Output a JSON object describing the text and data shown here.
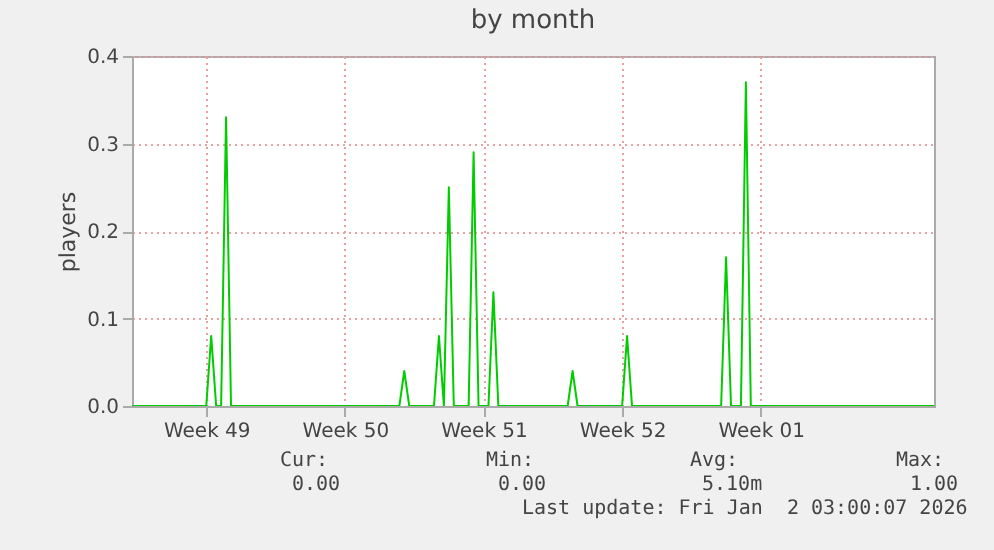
{
  "chart_data": {
    "type": "line",
    "title": "by month",
    "ylabel": "players",
    "categories": [
      null,
      null,
      null,
      null,
      null,
      null,
      null,
      null,
      null,
      null,
      null,
      null,
      null,
      null,
      null,
      "Week 49",
      null,
      null,
      null,
      null,
      null,
      null,
      null,
      null,
      null,
      null,
      null,
      null,
      null,
      null,
      null,
      null,
      null,
      null,
      null,
      null,
      null,
      null,
      null,
      null,
      null,
      null,
      null,
      "Week 50",
      null,
      null,
      null,
      null,
      null,
      null,
      null,
      null,
      null,
      null,
      null,
      null,
      null,
      null,
      null,
      null,
      null,
      null,
      null,
      null,
      null,
      null,
      null,
      null,
      null,
      null,
      null,
      "Week 51",
      null,
      null,
      null,
      null,
      null,
      null,
      null,
      null,
      null,
      null,
      null,
      null,
      null,
      null,
      null,
      null,
      null,
      null,
      null,
      null,
      null,
      null,
      null,
      null,
      null,
      null,
      null,
      "Week 52",
      null,
      null,
      null,
      null,
      null,
      null,
      null,
      null,
      null,
      null,
      null,
      null,
      null,
      null,
      null,
      null,
      null,
      null,
      null,
      null,
      null,
      null,
      null,
      null,
      null,
      null,
      null,
      "Week 01",
      null,
      null,
      null,
      null,
      null,
      null,
      null,
      null,
      null,
      null,
      null,
      null,
      null,
      null,
      null,
      null,
      null,
      null,
      null,
      null,
      null,
      null,
      null,
      null,
      null,
      null,
      null,
      null,
      null,
      null,
      null,
      null,
      null,
      null,
      null
    ],
    "series": [
      {
        "color": "#00cc00",
        "values": [
          0,
          0,
          0,
          0,
          0,
          0,
          0,
          0,
          0,
          0,
          0,
          0,
          0,
          0,
          0,
          0,
          0.08,
          0,
          0,
          0.33,
          0,
          0,
          0,
          0,
          0,
          0,
          0,
          0,
          0,
          0,
          0,
          0,
          0,
          0,
          0,
          0,
          0,
          0,
          0,
          0,
          0,
          0,
          0,
          0,
          0,
          0,
          0,
          0,
          0,
          0,
          0,
          0,
          0,
          0,
          0,
          0.04,
          0,
          0,
          0,
          0,
          0,
          0,
          0.08,
          0,
          0.25,
          0,
          0,
          0,
          0,
          0.29,
          0,
          0,
          0,
          0.13,
          0,
          0,
          0,
          0,
          0,
          0,
          0,
          0,
          0,
          0,
          0,
          0,
          0,
          0,
          0,
          0.04,
          0,
          0,
          0,
          0,
          0,
          0,
          0,
          0,
          0,
          0,
          0.08,
          0,
          0,
          0,
          0,
          0,
          0,
          0,
          0,
          0,
          0,
          0,
          0,
          0,
          0,
          0,
          0,
          0,
          0,
          0,
          0.17,
          0,
          0,
          0,
          0.37,
          0,
          0,
          0,
          0,
          0,
          0,
          0,
          0,
          0,
          0,
          0,
          0,
          0,
          0,
          0,
          0,
          0,
          0,
          0,
          0,
          0,
          0,
          0,
          0,
          0,
          0,
          0,
          0,
          0,
          0,
          0,
          0,
          0,
          0,
          0,
          0,
          0,
          0
        ]
      }
    ],
    "ylim": [
      0,
      0.4
    ],
    "yticks": [
      {
        "value": 0,
        "label": "0.0"
      },
      0.1,
      0.2,
      0.3,
      0.4
    ],
    "grid": true,
    "marker": "none",
    "line_style": "solid",
    "annotations": [
      "Cur:",
      "Min:",
      "Avg:",
      "Max:",
      "0.00",
      "0.00",
      "5.10m",
      "1.00",
      "Last update: Fri Jan  2 03:00:07 2026"
    ]
  }
}
